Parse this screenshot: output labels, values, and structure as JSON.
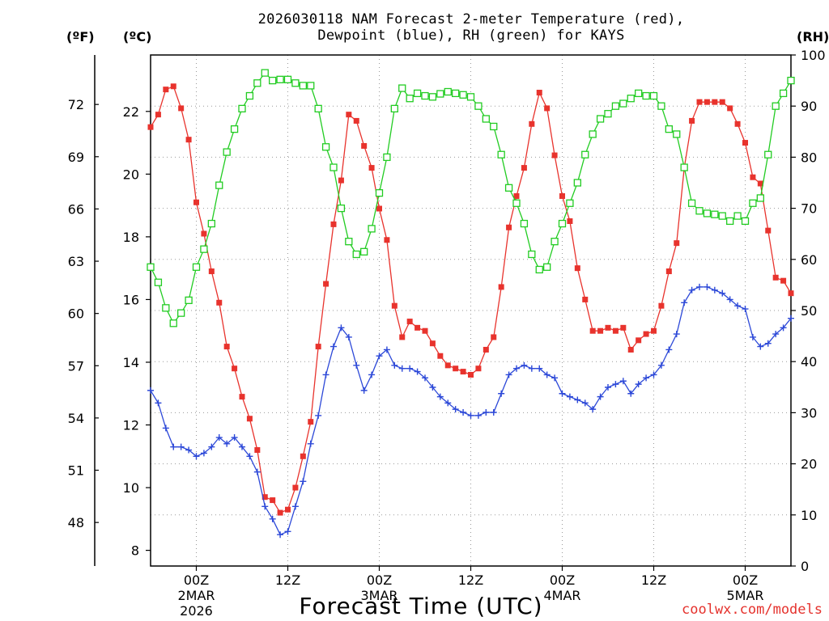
{
  "header": {
    "title_line1": "2026030118 NAM Forecast 2-meter Temperature (red),",
    "title_line2": "Dewpoint (blue), RH (green) for KAYS",
    "unit_f": "(ºF)",
    "unit_c": "(ºC)",
    "unit_rh": "(RH)"
  },
  "footer": {
    "xlabel": "Forecast Time (UTC)",
    "credit": "coolwx.com/models"
  },
  "chart_data": {
    "type": "line",
    "title": "2026030118 NAM Forecast 2-meter Temperature (red), Dewpoint (blue), RH (green) for KAYS",
    "xlabel": "Forecast Time (UTC)",
    "x_range_hours": [
      0,
      84
    ],
    "y_left_celsius_range": [
      7.5,
      23.8
    ],
    "y_left_celsius_ticks": [
      8,
      10,
      12,
      14,
      16,
      18,
      20,
      22
    ],
    "y_far_left_fahrenheit_ticks": [
      48,
      51,
      54,
      57,
      60,
      63,
      66,
      69,
      72
    ],
    "y_right_rh_range": [
      0,
      100
    ],
    "y_right_rh_ticks": [
      0,
      10,
      20,
      30,
      40,
      50,
      60,
      70,
      80,
      90,
      100
    ],
    "x_ticks": [
      {
        "hour": 6,
        "label": "00Z",
        "sub1": "2MAR",
        "sub2": "2026"
      },
      {
        "hour": 18,
        "label": "12Z",
        "sub1": "",
        "sub2": ""
      },
      {
        "hour": 30,
        "label": "00Z",
        "sub1": "3MAR",
        "sub2": ""
      },
      {
        "hour": 42,
        "label": "12Z",
        "sub1": "",
        "sub2": ""
      },
      {
        "hour": 54,
        "label": "00Z",
        "sub1": "4MAR",
        "sub2": ""
      },
      {
        "hour": 66,
        "label": "12Z",
        "sub1": "",
        "sub2": ""
      },
      {
        "hour": 78,
        "label": "00Z",
        "sub1": "5MAR",
        "sub2": ""
      }
    ],
    "grid": true,
    "series": [
      {
        "name": "Temperature",
        "unit": "C",
        "color": "#e8332d",
        "marker": "filled-square",
        "values": [
          21.5,
          21.9,
          22.7,
          22.8,
          22.1,
          21.1,
          19.1,
          18.1,
          16.9,
          15.9,
          14.5,
          13.8,
          12.9,
          12.2,
          11.2,
          9.7,
          9.6,
          9.2,
          9.3,
          10.0,
          11.0,
          12.1,
          14.5,
          16.5,
          18.4,
          19.8,
          21.9,
          21.7,
          20.9,
          20.2,
          18.9,
          17.9,
          15.8,
          14.8,
          15.3,
          15.1,
          15.0,
          14.6,
          14.2,
          13.9,
          13.8,
          13.7,
          13.6,
          13.8,
          14.4,
          14.8,
          16.4,
          18.3,
          19.3,
          20.2,
          21.6,
          22.6,
          22.1,
          20.6,
          19.3,
          18.5,
          17.0,
          16.0,
          15.0,
          15.0,
          15.1,
          15.0,
          15.1,
          14.4,
          14.7,
          14.9,
          15.0,
          15.8,
          16.9,
          17.8,
          20.2,
          21.7,
          22.3,
          22.3,
          22.3,
          22.3,
          22.1,
          21.6,
          21.0,
          19.9,
          19.7,
          18.2,
          16.7,
          16.6,
          16.2
        ]
      },
      {
        "name": "Dewpoint",
        "unit": "C",
        "color": "#2c48d8",
        "marker": "plus",
        "values": [
          13.1,
          12.7,
          11.9,
          11.3,
          11.3,
          11.2,
          11.0,
          11.1,
          11.3,
          11.6,
          11.4,
          11.6,
          11.3,
          11.0,
          10.5,
          9.4,
          9.0,
          8.5,
          8.6,
          9.4,
          10.2,
          11.4,
          12.3,
          13.6,
          14.5,
          15.1,
          14.8,
          13.9,
          13.1,
          13.6,
          14.2,
          14.4,
          13.9,
          13.8,
          13.8,
          13.7,
          13.5,
          13.2,
          12.9,
          12.7,
          12.5,
          12.4,
          12.3,
          12.3,
          12.4,
          12.4,
          13.0,
          13.6,
          13.8,
          13.9,
          13.8,
          13.8,
          13.6,
          13.5,
          13.0,
          12.9,
          12.8,
          12.7,
          12.5,
          12.9,
          13.2,
          13.3,
          13.4,
          13.0,
          13.3,
          13.5,
          13.6,
          13.9,
          14.4,
          14.9,
          15.9,
          16.3,
          16.4,
          16.4,
          16.3,
          16.2,
          16.0,
          15.8,
          15.7,
          14.8,
          14.5,
          14.6,
          14.9,
          15.1,
          15.4
        ]
      },
      {
        "name": "RH",
        "unit": "%",
        "color": "#22cc22",
        "marker": "open-square",
        "values": [
          58.5,
          55.5,
          50.5,
          47.5,
          49.5,
          52.0,
          58.5,
          62.0,
          67.0,
          74.5,
          81.0,
          85.5,
          89.5,
          92.0,
          94.5,
          96.5,
          95.0,
          95.2,
          95.2,
          94.5,
          94.0,
          94.0,
          89.5,
          82.0,
          78.0,
          70.0,
          63.5,
          61.0,
          61.5,
          66.0,
          73.0,
          80.0,
          89.5,
          93.5,
          91.5,
          92.5,
          92.0,
          91.8,
          92.4,
          92.8,
          92.5,
          92.2,
          91.8,
          90.0,
          87.5,
          86.0,
          80.5,
          74.0,
          71.0,
          67.0,
          61.0,
          58.0,
          58.5,
          63.5,
          67.0,
          71.0,
          75.0,
          80.5,
          84.5,
          87.5,
          88.5,
          90.0,
          90.5,
          91.5,
          92.5,
          92.0,
          92.0,
          90.0,
          85.5,
          84.5,
          78.0,
          71.0,
          69.5,
          69.0,
          68.8,
          68.5,
          67.5,
          68.5,
          67.5,
          71.0,
          72.0,
          80.5,
          90.0,
          92.5,
          95.0
        ]
      }
    ]
  }
}
